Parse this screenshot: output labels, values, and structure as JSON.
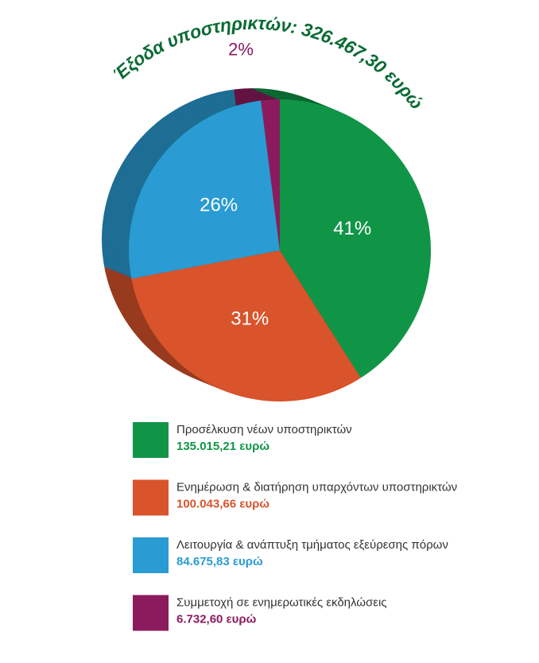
{
  "chart_data": {
    "type": "pie",
    "title": "Έξοδα υποστηρικτών: 326.467,30 ευρώ",
    "title_color": "#0b6b35",
    "categories": [
      "Προσέλκυση νέων υποστηρικτών",
      "Ενημέρωση & διατήρηση υπαρχόντων υποστηρικτών",
      "Λειτουργία & ανάπτυξη τμήματος εξεύρεσης πόρων",
      "Συμμετοχή σε ενημερωτικές εκδηλώσεις"
    ],
    "values": [
      41,
      31,
      26,
      2
    ],
    "value_labels": [
      "41%",
      "31%",
      "26%",
      "2%"
    ],
    "amounts": [
      {
        "value": 135015.21,
        "label": "135.015,21 ευρώ"
      },
      {
        "value": 100043.66,
        "label": "100.043,66 ευρώ"
      },
      {
        "value": 84675.83,
        "label": "84.675,83 ευρώ"
      },
      {
        "value": 6732.6,
        "label": "6.732,60 ευρώ"
      }
    ],
    "colors": [
      "#109547",
      "#d9532b",
      "#2a9bd3",
      "#8c1b5d"
    ]
  }
}
